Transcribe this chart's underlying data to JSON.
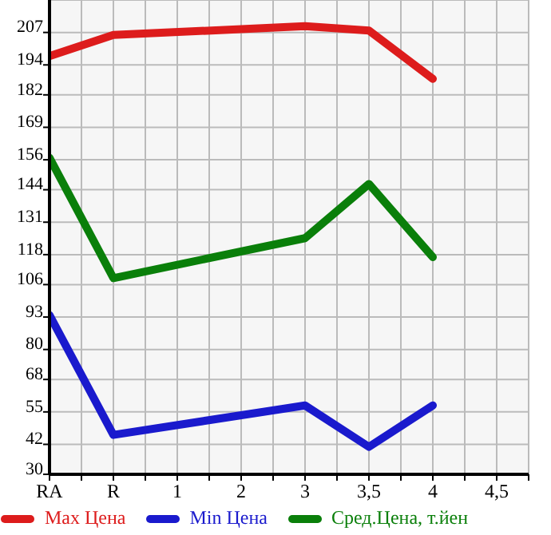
{
  "chart_data": {
    "type": "line",
    "categories": [
      "RA",
      "R",
      "1",
      "2",
      "3",
      "3,5",
      "4",
      "4,5"
    ],
    "series": [
      {
        "name": "Max Цена",
        "color": "#dd1c1c",
        "values": [
          197.5,
          206,
          null,
          null,
          209.5,
          207.8,
          188.4,
          null
        ]
      },
      {
        "name": "Min Цена",
        "color": "#1a1acd",
        "values": [
          93.8,
          45.8,
          null,
          null,
          57.6,
          41,
          57.6,
          null
        ]
      },
      {
        "name": "Сред.Цена, т.йен",
        "color": "#0a7f0a",
        "values": [
          156.8,
          108.6,
          null,
          null,
          124.6,
          146.3,
          117,
          null
        ]
      }
    ],
    "ylim": [
      30,
      220
    ],
    "yticks": [
      30,
      42,
      55,
      68,
      80,
      93,
      106,
      118,
      131,
      144,
      156,
      169,
      182,
      194,
      207
    ],
    "grid": true,
    "legend": "bottom",
    "marker": "none",
    "line_style": "solid"
  }
}
